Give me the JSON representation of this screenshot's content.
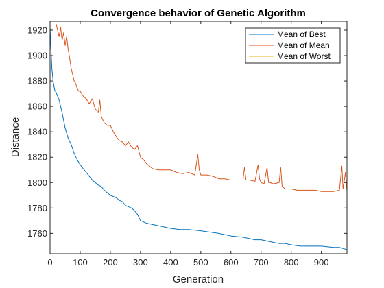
{
  "chart_data": {
    "type": "line",
    "title": "Convergence behavior of Genetic Algorithm",
    "xlabel": "Generation",
    "ylabel": "Distance",
    "xlim": [
      0,
      985
    ],
    "ylim": [
      1744,
      1927
    ],
    "xticks": [
      0,
      100,
      200,
      300,
      400,
      500,
      600,
      700,
      800,
      900
    ],
    "yticks": [
      1760,
      1780,
      1800,
      1820,
      1840,
      1860,
      1880,
      1900,
      1920
    ],
    "grid": false,
    "legend_position": "top-right",
    "series": [
      {
        "name": "Mean of Best",
        "color": "#0072BD",
        "x": [
          0,
          3,
          6,
          10,
          15,
          20,
          30,
          40,
          50,
          60,
          70,
          80,
          90,
          100,
          110,
          120,
          130,
          140,
          150,
          160,
          170,
          180,
          190,
          200,
          210,
          220,
          230,
          240,
          250,
          260,
          270,
          280,
          290,
          300,
          310,
          320,
          340,
          360,
          380,
          400,
          430,
          460,
          500,
          530,
          560,
          600,
          640,
          660,
          680,
          700,
          720,
          740,
          760,
          780,
          800,
          830,
          860,
          900,
          940,
          960,
          975,
          985
        ],
        "y": [
          1922,
          1905,
          1890,
          1880,
          1873,
          1871,
          1865,
          1855,
          1843,
          1835,
          1830,
          1823,
          1818,
          1814,
          1811,
          1808,
          1805,
          1802,
          1800,
          1798,
          1797,
          1794,
          1792,
          1790,
          1789,
          1788,
          1786,
          1785,
          1782,
          1781,
          1780,
          1778,
          1775,
          1770,
          1769,
          1768,
          1767,
          1766,
          1765,
          1764,
          1763,
          1763,
          1762,
          1761,
          1760,
          1758,
          1757,
          1756,
          1755,
          1755,
          1754,
          1753,
          1752,
          1752,
          1751,
          1750,
          1750,
          1750,
          1749,
          1749,
          1748,
          1747
        ]
      },
      {
        "name": "Mean of Mean",
        "color": "#D95319",
        "x": [
          20,
          25,
          30,
          35,
          40,
          45,
          50,
          55,
          60,
          65,
          70,
          75,
          80,
          85,
          90,
          95,
          100,
          105,
          110,
          120,
          130,
          140,
          150,
          160,
          165,
          170,
          180,
          190,
          200,
          210,
          220,
          230,
          240,
          250,
          260,
          270,
          280,
          290,
          300,
          310,
          320,
          340,
          360,
          380,
          400,
          420,
          440,
          460,
          480,
          490,
          495,
          500,
          520,
          540,
          560,
          580,
          600,
          620,
          640,
          645,
          650,
          660,
          680,
          690,
          695,
          700,
          710,
          720,
          725,
          730,
          740,
          760,
          765,
          770,
          780,
          800,
          820,
          840,
          860,
          880,
          900,
          920,
          940,
          960,
          968,
          972,
          980,
          985
        ],
        "y": [
          1925,
          1920,
          1915,
          1922,
          1912,
          1918,
          1908,
          1915,
          1905,
          1898,
          1890,
          1885,
          1880,
          1878,
          1874,
          1872,
          1872,
          1870,
          1868,
          1866,
          1862,
          1866,
          1858,
          1855,
          1865,
          1852,
          1847,
          1845,
          1845,
          1840,
          1836,
          1833,
          1832,
          1829,
          1832,
          1828,
          1826,
          1829,
          1820,
          1818,
          1815,
          1811,
          1810,
          1810,
          1810,
          1808,
          1807,
          1808,
          1806,
          1822,
          1810,
          1806,
          1806,
          1805,
          1803,
          1803,
          1802,
          1802,
          1802,
          1812,
          1802,
          1802,
          1801,
          1814,
          1803,
          1800,
          1799,
          1812,
          1800,
          1800,
          1799,
          1800,
          1812,
          1797,
          1795,
          1795,
          1794,
          1794,
          1794,
          1794,
          1793,
          1793,
          1793,
          1794,
          1813,
          1795,
          1808,
          1793
        ]
      },
      {
        "name": "Mean of Worst",
        "color": "#EDB120",
        "x": [],
        "y": []
      }
    ]
  }
}
